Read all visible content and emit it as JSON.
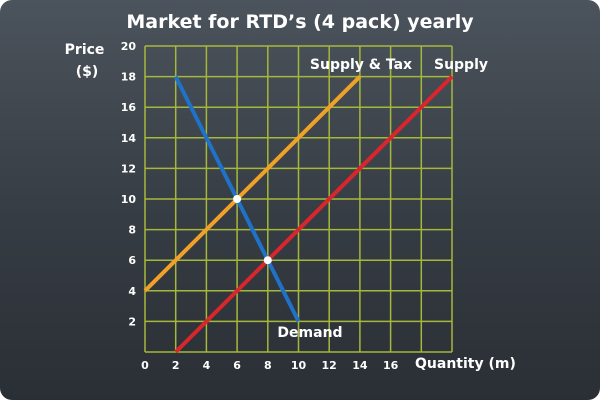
{
  "chart_data": {
    "type": "line",
    "title": "Market for RTD’s (4 pack) yearly",
    "ylabel": [
      "Price",
      "($)"
    ],
    "xlabel": "Quantity (m)",
    "xlim": [
      0,
      20
    ],
    "ylim": [
      0,
      20
    ],
    "x_ticks": [
      0,
      2,
      4,
      6,
      8,
      10,
      12,
      14,
      16
    ],
    "y_ticks": [
      2,
      4,
      6,
      8,
      10,
      12,
      14,
      16,
      18,
      20
    ],
    "x_tick_labels": [
      "0",
      "2",
      "4",
      "6",
      "8",
      "10",
      "12",
      "14",
      "16"
    ],
    "y_tick_labels": [
      "2",
      "4",
      "6",
      "8",
      "10",
      "12",
      "14",
      "16",
      "18",
      "20"
    ],
    "grid": true,
    "series": [
      {
        "name": "Demand",
        "color": "#1f72c8",
        "points": [
          [
            2,
            18
          ],
          [
            10,
            2
          ]
        ]
      },
      {
        "name": "Supply & Tax",
        "color": "#f2a128",
        "points": [
          [
            0,
            4
          ],
          [
            14,
            18
          ]
        ]
      },
      {
        "name": "Supply",
        "color": "#d8262c",
        "points": [
          [
            2,
            0
          ],
          [
            20,
            18
          ]
        ]
      }
    ],
    "markers": [
      {
        "x": 6,
        "y": 10
      },
      {
        "x": 8,
        "y": 6
      }
    ],
    "colors": {
      "grid": "#a5b83a",
      "marker": "#ffffff"
    }
  }
}
